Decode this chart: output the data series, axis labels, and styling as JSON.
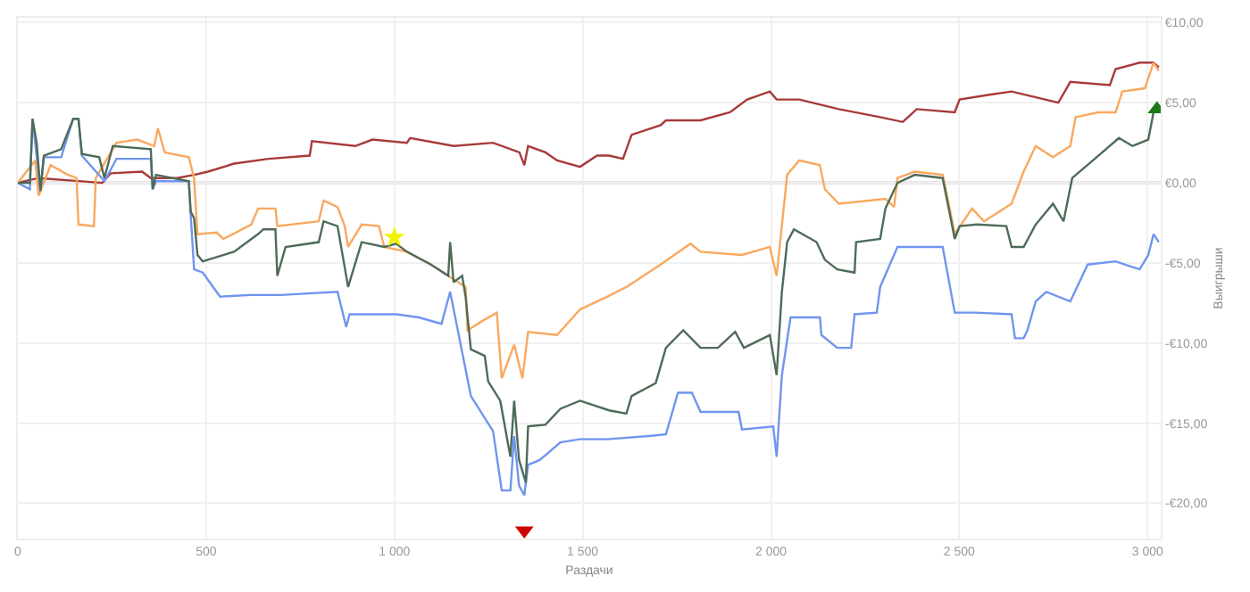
{
  "chart_data": {
    "type": "line",
    "xlabel": "Раздачи",
    "ylabel": "Выигрыши",
    "xlim": [
      0,
      3035
    ],
    "ylim": [
      -22.2,
      10.3
    ],
    "xticks": [
      0,
      500,
      {
        "value": 1000,
        "label": "1 000"
      },
      {
        "value": 1500,
        "label": "1 500"
      },
      {
        "value": 2000,
        "label": "2 000"
      },
      {
        "value": 2500,
        "label": "2 500"
      },
      {
        "value": 3000,
        "label": "3 000"
      }
    ],
    "yticks": [
      {
        "value": 10,
        "label": "€10,00"
      },
      {
        "value": 5,
        "label": "€5,00"
      },
      {
        "value": 0,
        "label": "€0,00"
      },
      {
        "value": -5,
        "label": "-€5,00"
      },
      {
        "value": -10,
        "label": "-€10,00"
      },
      {
        "value": -15,
        "label": "-€15,00"
      },
      {
        "value": -20,
        "label": "-€20,00"
      }
    ],
    "grid": true,
    "marker": "none",
    "line_style": "solid",
    "ref_lines": [
      {
        "axis": "y",
        "value": 0,
        "color": "#c8c8c8"
      }
    ],
    "series": [
      {
        "color": "#a83a3a",
        "x": [
          0,
          55,
          224,
          247,
          330,
          353,
          422,
          468,
          505,
          574,
          666,
          775,
          781,
          896,
          942,
          1033,
          1042,
          1157,
          1262,
          1332,
          1345,
          1355,
          1401,
          1432,
          1493,
          1538,
          1570,
          1607,
          1630,
          1707,
          1721,
          1813,
          1891,
          1937,
          1997,
          2015,
          2075,
          2180,
          2290,
          2350,
          2387,
          2488,
          2501,
          2580,
          2639,
          2763,
          2795,
          2900,
          2915,
          2979,
          3016,
          3030
        ],
        "values": [
          0,
          0.3,
          0,
          0.6,
          0.7,
          0.3,
          0.3,
          0.5,
          0.7,
          1.2,
          1.5,
          1.7,
          2.6,
          2.3,
          2.7,
          2.5,
          2.8,
          2.3,
          2.5,
          1.9,
          1.1,
          2.3,
          1.9,
          1.4,
          1.0,
          1.7,
          1.7,
          1.5,
          3.0,
          3.6,
          3.9,
          3.9,
          4.4,
          5.2,
          5.7,
          5.2,
          5.2,
          4.6,
          4.1,
          3.8,
          4.6,
          4.4,
          5.2,
          5.5,
          5.7,
          5.0,
          6.3,
          6.1,
          7.1,
          7.5,
          7.5,
          7.2
        ]
      },
      {
        "color": "#f9a85e",
        "x": [
          0,
          23,
          46,
          55,
          87,
          133,
          156,
          161,
          202,
          207,
          262,
          317,
          362,
          372,
          390,
          454,
          468,
          477,
          528,
          546,
          620,
          638,
          684,
          689,
          799,
          812,
          849,
          868,
          877,
          913,
          959,
          973,
          1033,
          1097,
          1143,
          1189,
          1194,
          1235,
          1272,
          1285,
          1318,
          1340,
          1355,
          1432,
          1493,
          1566,
          1616,
          1707,
          1786,
          1813,
          1923,
          1997,
          2015,
          2043,
          2075,
          2130,
          2143,
          2180,
          2304,
          2327,
          2336,
          2382,
          2456,
          2474,
          2488,
          2534,
          2566,
          2639,
          2671,
          2703,
          2749,
          2795,
          2809,
          2869,
          2915,
          2933,
          2993,
          3016,
          3030
        ],
        "values": [
          0,
          0.7,
          1.4,
          -0.8,
          1.1,
          0.5,
          0.3,
          -2.6,
          -2.7,
          0.3,
          2.5,
          2.7,
          2.3,
          3.4,
          1.9,
          1.6,
          0.3,
          -3.2,
          -3.1,
          -3.5,
          -2.6,
          -1.6,
          -1.6,
          -2.7,
          -2.4,
          -1.1,
          -1.5,
          -2.7,
          -4.0,
          -2.6,
          -2.7,
          -4.0,
          -4.3,
          -5.1,
          -5.8,
          -6.5,
          -9.2,
          -8.6,
          -8.1,
          -12.2,
          -10.1,
          -12.2,
          -9.3,
          -9.5,
          -7.9,
          -7.1,
          -6.5,
          -5.1,
          -3.8,
          -4.3,
          -4.5,
          -4.0,
          -5.8,
          0.5,
          1.4,
          1.1,
          -0.4,
          -1.3,
          -1.0,
          -1.5,
          0.3,
          0.7,
          0.5,
          -1.5,
          -3.2,
          -1.6,
          -2.4,
          -1.3,
          0.7,
          2.3,
          1.6,
          2.3,
          4.1,
          4.4,
          4.4,
          5.7,
          5.9,
          7.5,
          7.0
        ]
      },
      {
        "color": "#7095ee",
        "x": [
          0,
          32,
          39,
          60,
          69,
          115,
          147,
          161,
          170,
          230,
          262,
          353,
          358,
          367,
          454,
          459,
          468,
          491,
          537,
          620,
          698,
          849,
          872,
          881,
          1005,
          1065,
          1125,
          1148,
          1203,
          1262,
          1285,
          1308,
          1318,
          1331,
          1345,
          1355,
          1386,
          1441,
          1493,
          1566,
          1676,
          1721,
          1753,
          1790,
          1813,
          1914,
          1923,
          2006,
          2015,
          2029,
          2052,
          2130,
          2134,
          2176,
          2213,
          2222,
          2281,
          2290,
          2336,
          2456,
          2488,
          2543,
          2639,
          2648,
          2671,
          2681,
          2703,
          2731,
          2795,
          2841,
          2915,
          2979,
          3002,
          3016,
          3030
        ],
        "values": [
          0,
          -0.4,
          4.0,
          -0.5,
          1.6,
          1.6,
          4.0,
          4.0,
          1.7,
          0.1,
          1.5,
          1.5,
          -0.4,
          0.1,
          0.1,
          -2.0,
          -5.4,
          -5.6,
          -7.1,
          -7.0,
          -7.0,
          -6.8,
          -9.0,
          -8.2,
          -8.2,
          -8.4,
          -8.8,
          -6.8,
          -13.3,
          -15.5,
          -19.2,
          -19.2,
          -15.8,
          -18.9,
          -19.5,
          -17.6,
          -17.3,
          -16.2,
          -16.0,
          -16.0,
          -15.8,
          -15.7,
          -13.1,
          -13.1,
          -14.3,
          -14.3,
          -15.4,
          -15.2,
          -17.1,
          -12.0,
          -8.4,
          -8.4,
          -9.5,
          -10.3,
          -10.3,
          -8.2,
          -8.1,
          -6.5,
          -4.0,
          -4.0,
          -8.1,
          -8.1,
          -8.2,
          -9.7,
          -9.7,
          -9.2,
          -7.4,
          -6.8,
          -7.4,
          -5.1,
          -4.9,
          -5.4,
          -4.5,
          -3.2,
          -3.7
        ]
      },
      {
        "color": "#4e6b58",
        "x": [
          0,
          32,
          39,
          50,
          60,
          69,
          115,
          147,
          161,
          170,
          216,
          230,
          252,
          353,
          358,
          367,
          454,
          459,
          468,
          477,
          491,
          574,
          638,
          652,
          684,
          689,
          711,
          799,
          812,
          849,
          877,
          913,
          973,
          1005,
          1033,
          1097,
          1143,
          1148,
          1157,
          1180,
          1189,
          1203,
          1240,
          1249,
          1281,
          1308,
          1318,
          1331,
          1349,
          1355,
          1401,
          1441,
          1493,
          1570,
          1616,
          1630,
          1694,
          1721,
          1767,
          1813,
          1859,
          1905,
          1928,
          1997,
          2015,
          2029,
          2043,
          2061,
          2121,
          2143,
          2176,
          2222,
          2226,
          2290,
          2304,
          2336,
          2382,
          2456,
          2488,
          2501,
          2547,
          2625,
          2639,
          2671,
          2703,
          2749,
          2777,
          2800,
          2855,
          2924,
          2960,
          3002,
          3016,
          3030
        ],
        "values": [
          0,
          0,
          4.0,
          2.5,
          -0.5,
          1.7,
          2.1,
          4.0,
          4.0,
          1.8,
          1.6,
          0.3,
          2.3,
          2.1,
          -0.4,
          0.5,
          0.1,
          -1.8,
          -2.2,
          -4.5,
          -4.9,
          -4.3,
          -3.2,
          -2.9,
          -2.9,
          -5.8,
          -4.0,
          -3.7,
          -2.4,
          -2.7,
          -6.5,
          -3.7,
          -4.0,
          -3.8,
          -4.3,
          -5.1,
          -5.8,
          -3.7,
          -6.2,
          -5.8,
          -7.1,
          -10.4,
          -10.8,
          -12.4,
          -13.6,
          -17.1,
          -13.6,
          -17.3,
          -18.7,
          -15.2,
          -15.1,
          -14.1,
          -13.6,
          -14.2,
          -14.4,
          -13.3,
          -12.5,
          -10.3,
          -9.2,
          -10.3,
          -10.3,
          -9.3,
          -10.3,
          -9.5,
          -12.0,
          -6.8,
          -3.7,
          -2.9,
          -3.7,
          -4.8,
          -5.4,
          -5.6,
          -3.7,
          -3.5,
          -1.6,
          0,
          0.5,
          0.3,
          -3.5,
          -2.7,
          -2.6,
          -2.7,
          -4.0,
          -4.0,
          -2.6,
          -1.3,
          -2.4,
          0.3,
          1.4,
          2.8,
          2.3,
          2.7,
          4.4,
          4.9
        ]
      },
      {
        "type": "scatter",
        "marker": "star",
        "color": "#f2f200",
        "x": [
          1000
        ],
        "values": [
          -3.4
        ]
      },
      {
        "type": "scatter",
        "marker": "triangle-down",
        "color": "#cc0000",
        "x": [
          1345
        ],
        "values": [
          -21.7
        ]
      },
      {
        "type": "scatter",
        "marker": "triangle-up",
        "color": "#1a7a1a",
        "x": [
          3025
        ],
        "values": [
          4.6
        ]
      }
    ]
  }
}
